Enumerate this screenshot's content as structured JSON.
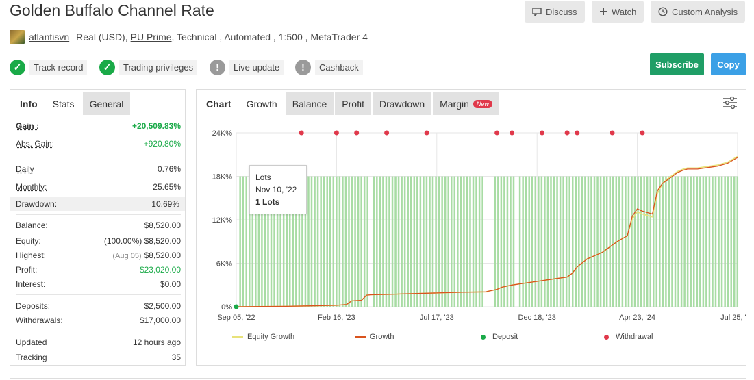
{
  "header": {
    "title": "Golden Buffalo Channel Rate",
    "discuss": "Discuss",
    "watch": "Watch",
    "custom_analysis": "Custom Analysis"
  },
  "meta": {
    "user": "atlantisvn",
    "account": "Real (USD),",
    "broker": "PU Prime",
    "rest": ", Technical , Automated , 1:500 , MetaTrader 4"
  },
  "badges": [
    {
      "label": "Track record",
      "status": "ok"
    },
    {
      "label": "Trading privileges",
      "status": "ok"
    },
    {
      "label": "Live update",
      "status": "na"
    },
    {
      "label": "Cashback",
      "status": "na"
    }
  ],
  "actions": {
    "subscribe": "Subscribe",
    "copy": "Copy"
  },
  "left_tabs": [
    "Info",
    "Stats",
    "General"
  ],
  "stats": {
    "gain_label": "Gain :",
    "gain": "+20,509.83%",
    "abs_gain_label": "Abs. Gain:",
    "abs_gain": "+920.80%",
    "daily_label": "Daily",
    "daily": "0.76%",
    "monthly_label": "Monthly:",
    "monthly": "25.65%",
    "drawdown_label": "Drawdown:",
    "drawdown": "10.69%",
    "balance_label": "Balance:",
    "balance": "$8,520.00",
    "equity_label": "Equity:",
    "equity_pct": "(100.00%)",
    "equity": "$8,520.00",
    "highest_label": "Highest:",
    "highest_date": "(Aug 05)",
    "highest": "$8,520.00",
    "profit_label": "Profit:",
    "profit": "$23,020.00",
    "interest_label": "Interest:",
    "interest": "$0.00",
    "deposits_label": "Deposits:",
    "deposits": "$2,500.00",
    "withdrawals_label": "Withdrawals:",
    "withdrawals": "$17,000.00",
    "updated_label": "Updated",
    "updated": "12 hours ago",
    "tracking_label": "Tracking",
    "tracking": "35"
  },
  "chart_tabs": {
    "chart": "Chart",
    "growth": "Growth",
    "balance": "Balance",
    "profit": "Profit",
    "drawdown": "Drawdown",
    "margin": "Margin",
    "new": "New"
  },
  "tooltip": {
    "title": "Lots",
    "date": "Nov 10, '22",
    "value": "1 Lots"
  },
  "legend": {
    "equity": "Equity Growth",
    "growth": "Growth",
    "deposit": "Deposit",
    "withdrawal": "Withdrawal"
  },
  "colors": {
    "equity": "#e8e27a",
    "growth": "#d9531e",
    "deposit": "#1aaa48",
    "withdrawal": "#e0394b",
    "lots": "#a8dca4"
  },
  "chart_data": {
    "type": "line",
    "y_ticks": [
      "0%",
      "6K%",
      "12K%",
      "18K%",
      "24K%"
    ],
    "x_ticks": [
      "Sep 05, '22",
      "Feb 16, '23",
      "Jul 17, '23",
      "Dec 18, '23",
      "Apr 23, '24",
      "Jul 25, '24"
    ],
    "ylim": [
      0,
      24000
    ],
    "series": [
      {
        "name": "Growth",
        "x": [
          0,
          0.05,
          0.1,
          0.15,
          0.2,
          0.22,
          0.23,
          0.25,
          0.26,
          0.27,
          0.3,
          0.35,
          0.4,
          0.45,
          0.5,
          0.5,
          0.52,
          0.53,
          0.55,
          0.57,
          0.6,
          0.62,
          0.64,
          0.66,
          0.67,
          0.68,
          0.7,
          0.72,
          0.73,
          0.74,
          0.75,
          0.76,
          0.77,
          0.78,
          0.79,
          0.8,
          0.81,
          0.82,
          0.83,
          0.84,
          0.85,
          0.86,
          0.87,
          0.88,
          0.89,
          0.9,
          0.92,
          0.94,
          0.96,
          0.98,
          1.0
        ],
        "values": [
          0,
          30,
          60,
          120,
          200,
          300,
          800,
          900,
          1600,
          1650,
          1700,
          1800,
          1900,
          2000,
          2050,
          2100,
          2400,
          2700,
          3000,
          3200,
          3500,
          3700,
          3900,
          4100,
          4600,
          5500,
          6600,
          7200,
          7500,
          8000,
          8500,
          9000,
          9400,
          9800,
          12500,
          13500,
          13200,
          13000,
          12800,
          16000,
          17000,
          17500,
          18000,
          18500,
          18800,
          19000,
          19000,
          19200,
          19400,
          19800,
          20600
        ]
      },
      {
        "name": "Equity Growth",
        "note": "",
        "x": [
          0,
          1
        ],
        "values": [
          0,
          20600
        ]
      }
    ],
    "deposits": [
      {
        "x": 0,
        "y": 0
      }
    ],
    "withdrawals_x": [
      0.13,
      0.2,
      0.24,
      0.3,
      0.38,
      0.52,
      0.55,
      0.61,
      0.66,
      0.68,
      0.75,
      0.81
    ],
    "lots_bars": 1,
    "legend_position": "bottom"
  }
}
